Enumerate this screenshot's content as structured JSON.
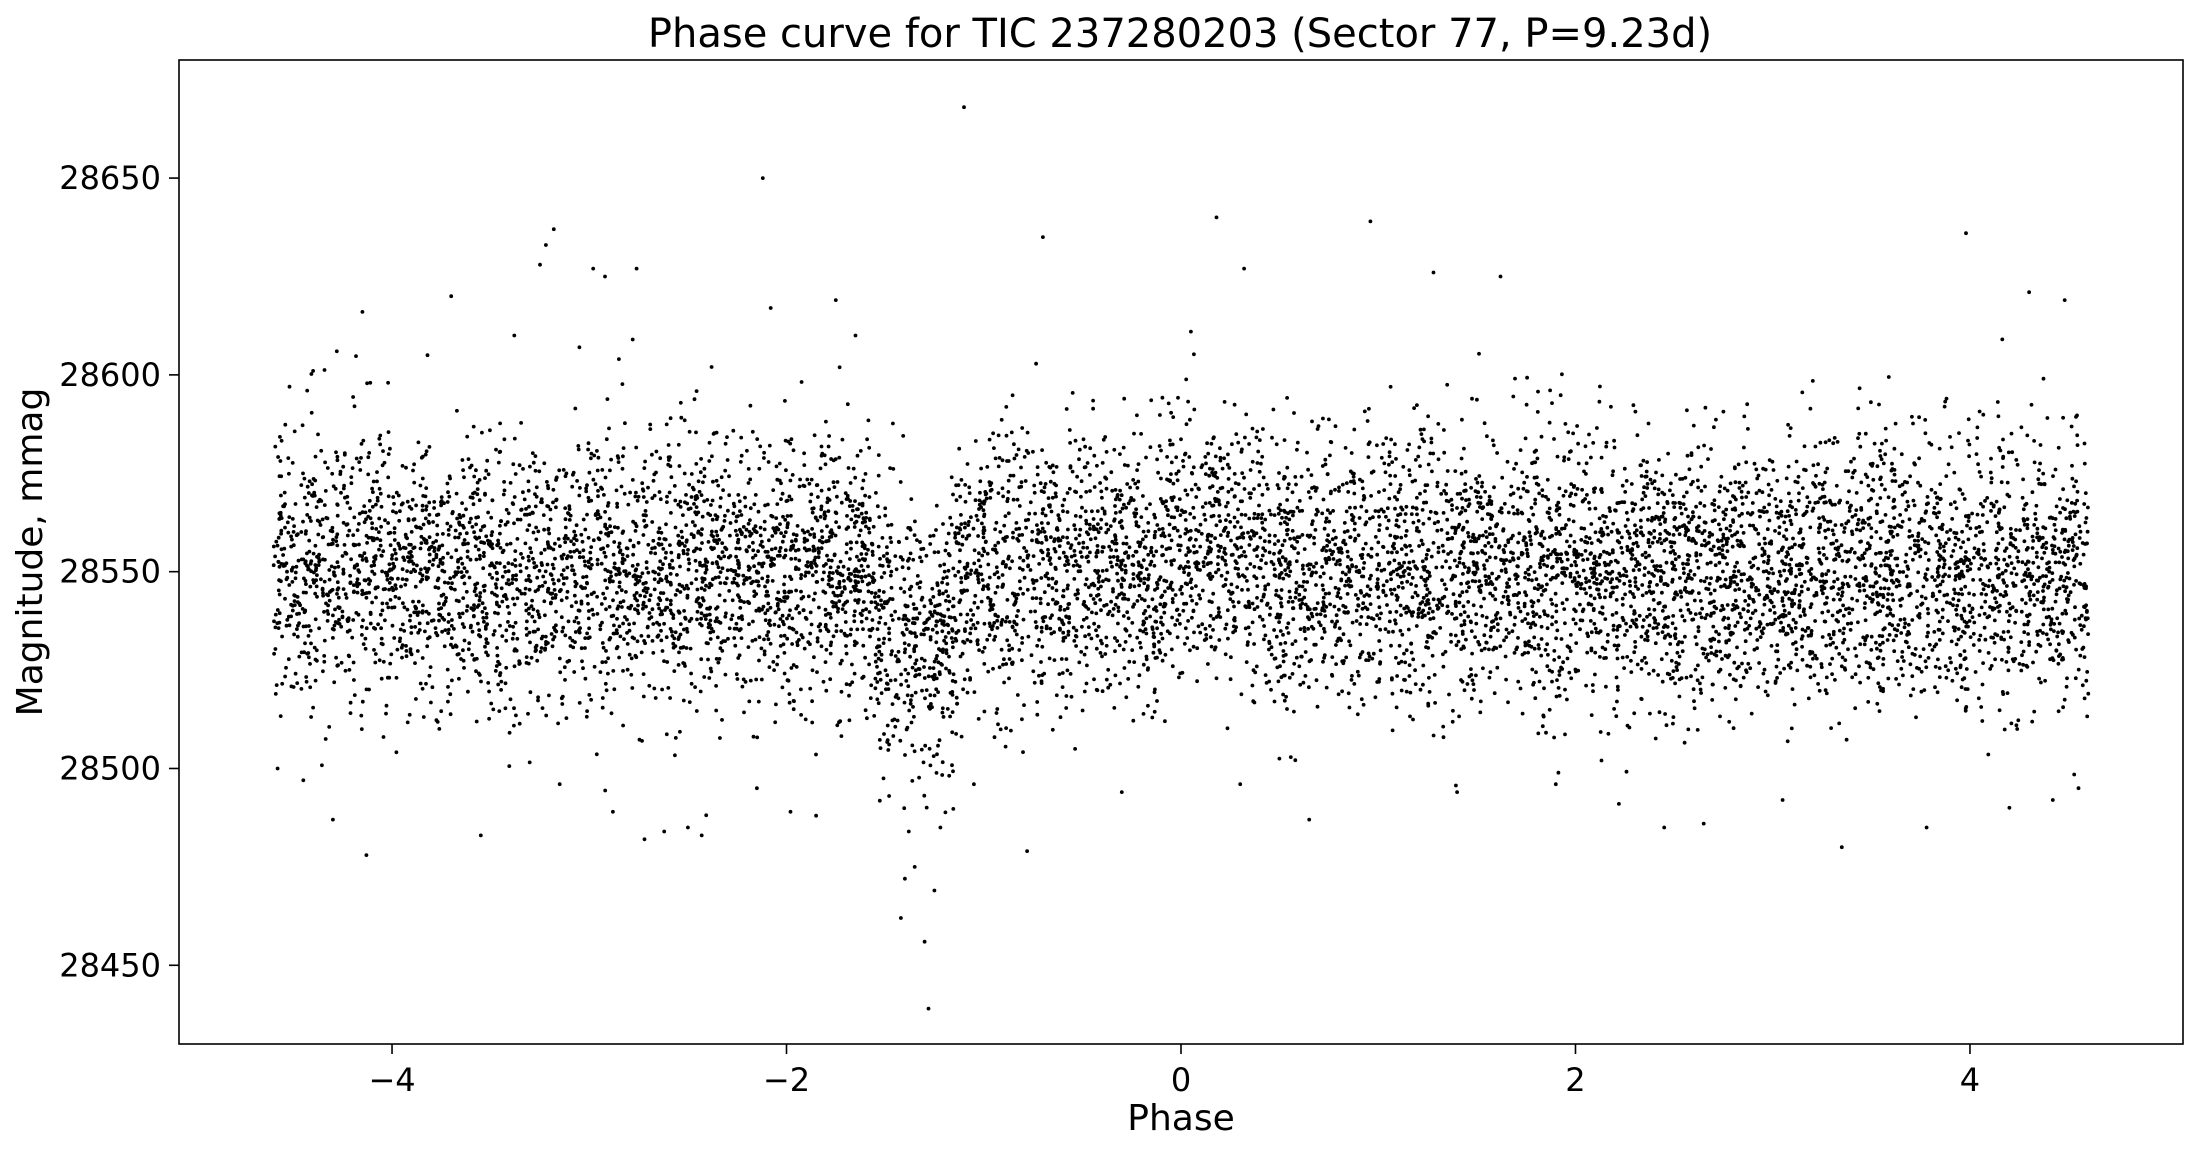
{
  "chart_data": {
    "type": "scatter",
    "title": "Phase curve for TIC 237280203 (Sector 77, P=9.23d)",
    "xlabel": "Phase",
    "ylabel": "Magnitude, mmag",
    "xlim": [
      -5.08,
      5.08
    ],
    "ylim": [
      28430,
      28680
    ],
    "x_ticks": [
      -4,
      -2,
      0,
      2,
      4
    ],
    "x_tick_labels": [
      "−4",
      "−2",
      "0",
      "2",
      "4"
    ],
    "y_ticks": [
      28450,
      28500,
      28550,
      28600,
      28650
    ],
    "y_tick_labels": [
      "28450",
      "28500",
      "28550",
      "28600",
      "28650"
    ],
    "grid": false,
    "legend": "none",
    "marker_color": "#000000",
    "series": [
      {
        "points": [
          [
            -4.58,
            28500
          ],
          [
            -4.52,
            28597
          ],
          [
            -4.45,
            28497
          ],
          [
            -4.43,
            28596
          ],
          [
            -4.4,
            28601
          ],
          [
            -4.3,
            28487
          ],
          [
            -4.28,
            28606
          ],
          [
            -4.15,
            28616
          ],
          [
            -4.13,
            28478
          ],
          [
            -4.11,
            28598
          ],
          [
            -4.02,
            28598
          ],
          [
            -3.82,
            28605
          ],
          [
            -3.7,
            28620
          ],
          [
            -3.55,
            28483
          ],
          [
            -3.38,
            28610
          ],
          [
            -3.25,
            28628
          ],
          [
            -3.22,
            28633
          ],
          [
            -3.18,
            28637
          ],
          [
            -3.15,
            28496
          ],
          [
            -3.05,
            28607
          ],
          [
            -2.98,
            28627
          ],
          [
            -2.92,
            28625
          ],
          [
            -2.88,
            28489
          ],
          [
            -2.85,
            28604
          ],
          [
            -2.78,
            28609
          ],
          [
            -2.76,
            28627
          ],
          [
            -2.72,
            28482
          ],
          [
            -2.62,
            28484
          ],
          [
            -2.5,
            28485
          ],
          [
            -2.43,
            28483
          ],
          [
            -2.38,
            28602
          ],
          [
            -2.15,
            28495
          ],
          [
            -2.12,
            28650
          ],
          [
            -2.08,
            28617
          ],
          [
            -1.98,
            28489
          ],
          [
            -1.85,
            28488
          ],
          [
            -1.75,
            28619
          ],
          [
            -1.65,
            28610
          ],
          [
            -1.48,
            28493
          ],
          [
            -1.42,
            28462
          ],
          [
            -1.4,
            28472
          ],
          [
            -1.38,
            28484
          ],
          [
            -1.35,
            28475
          ],
          [
            -1.3,
            28456
          ],
          [
            -1.28,
            28439
          ],
          [
            -1.25,
            28469
          ],
          [
            -1.22,
            28485
          ],
          [
            -1.1,
            28668
          ],
          [
            -1.05,
            28496
          ],
          [
            -0.78,
            28479
          ],
          [
            -0.7,
            28635
          ],
          [
            -0.3,
            28494
          ],
          [
            0.05,
            28611
          ],
          [
            0.18,
            28640
          ],
          [
            0.3,
            28496
          ],
          [
            0.32,
            28627
          ],
          [
            0.65,
            28487
          ],
          [
            0.96,
            28639
          ],
          [
            1.28,
            28626
          ],
          [
            1.4,
            28494
          ],
          [
            1.62,
            28625
          ],
          [
            1.9,
            28496
          ],
          [
            2.22,
            28491
          ],
          [
            2.45,
            28485
          ],
          [
            2.65,
            28486
          ],
          [
            3.05,
            28492
          ],
          [
            3.35,
            28480
          ],
          [
            3.78,
            28485
          ],
          [
            3.98,
            28636
          ],
          [
            4.2,
            28490
          ],
          [
            4.3,
            28621
          ],
          [
            4.42,
            28492
          ],
          [
            4.48,
            28619
          ],
          [
            4.55,
            28495
          ]
        ]
      }
    ]
  }
}
